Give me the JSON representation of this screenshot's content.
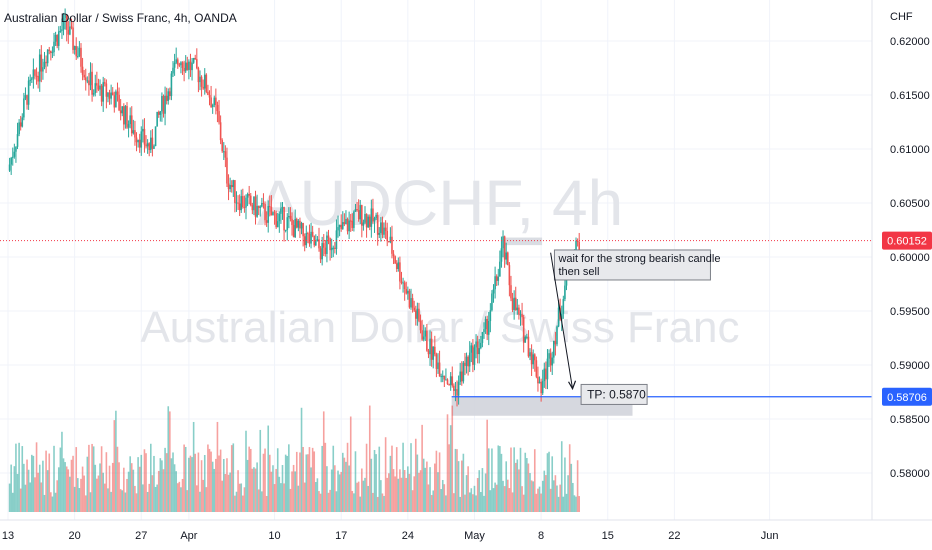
{
  "chart_data": {
    "type": "candlestick",
    "title": "Australian Dollar / Swiss Franc, 4h, OANDA",
    "watermark_symbol": "AUDCHF, 4h",
    "watermark_name": "Australian Dollar / Swiss Franc",
    "currency": "CHF",
    "y_ticks": [
      "0.62000",
      "0.61500",
      "0.61000",
      "0.60500",
      "0.60000",
      "0.59500",
      "0.59000",
      "0.58500",
      "0.58000"
    ],
    "y_tick_values": [
      0.62,
      0.615,
      0.61,
      0.605,
      0.6,
      0.595,
      0.59,
      0.585,
      0.58
    ],
    "ylim": [
      0.5755,
      0.6241
    ],
    "x_ticks": [
      "13",
      "20",
      "27",
      "Apr",
      "10",
      "17",
      "24",
      "May",
      "8",
      "15",
      "22",
      "Jun"
    ],
    "x_tick_days": [
      0,
      7,
      14,
      19,
      28,
      35,
      42,
      49,
      56,
      63,
      70,
      80
    ],
    "current_price": "0.60152",
    "current_price_value": 0.60152,
    "tp_price": "0.58706",
    "tp_price_value": 0.58706,
    "tp_label": "TP: 0.5870",
    "annotation_lines": [
      "wait for the strong bearish candle",
      "then sell"
    ],
    "resistance_zone": [
      0.6011,
      0.6018
    ],
    "support_zone": [
      0.5853,
      0.587
    ],
    "colors": {
      "up": "#26a69a",
      "down": "#ef5350",
      "tp_line": "#2962ff",
      "current": "#f23645",
      "zone": "#d1d4dc"
    },
    "price_path": [
      [
        0,
        0.608
      ],
      [
        2,
        0.615
      ],
      [
        4,
        0.619
      ],
      [
        6,
        0.6215
      ],
      [
        7,
        0.6195
      ],
      [
        9,
        0.6155
      ],
      [
        11,
        0.615
      ],
      [
        13,
        0.612
      ],
      [
        15,
        0.61
      ],
      [
        16,
        0.6135
      ],
      [
        18,
        0.6185
      ],
      [
        20,
        0.617
      ],
      [
        21,
        0.6155
      ],
      [
        22,
        0.613
      ],
      [
        23,
        0.6075
      ],
      [
        24,
        0.6055
      ],
      [
        27,
        0.604
      ],
      [
        29,
        0.6035
      ],
      [
        31,
        0.602
      ],
      [
        33,
        0.6005
      ],
      [
        35,
        0.6025
      ],
      [
        37,
        0.604
      ],
      [
        39,
        0.603
      ],
      [
        40,
        0.6015
      ],
      [
        42,
        0.5965
      ],
      [
        44,
        0.592
      ],
      [
        46,
        0.589
      ],
      [
        47,
        0.5876
      ],
      [
        48,
        0.59
      ],
      [
        50,
        0.5925
      ],
      [
        51,
        0.5965
      ],
      [
        52,
        0.601
      ],
      [
        53,
        0.596
      ],
      [
        54,
        0.5935
      ],
      [
        55,
        0.591
      ],
      [
        56,
        0.588
      ],
      [
        57,
        0.591
      ],
      [
        58,
        0.595
      ],
      [
        59,
        0.5995
      ],
      [
        60,
        0.6015
      ]
    ]
  }
}
